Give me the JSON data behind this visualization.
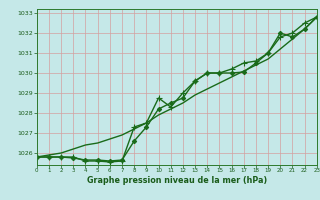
{
  "series": [
    {
      "name": "line_smooth",
      "x": [
        0,
        1,
        2,
        3,
        4,
        5,
        6,
        7,
        8,
        9,
        10,
        11,
        12,
        13,
        14,
        15,
        16,
        17,
        18,
        19,
        20,
        21,
        22,
        23
      ],
      "y": [
        1025.8,
        1025.9,
        1026.0,
        1026.2,
        1026.4,
        1026.5,
        1026.7,
        1026.9,
        1027.2,
        1027.5,
        1027.9,
        1028.2,
        1028.5,
        1028.9,
        1029.2,
        1029.5,
        1029.8,
        1030.1,
        1030.4,
        1030.7,
        1031.2,
        1031.7,
        1032.2,
        1032.8
      ],
      "marker": null,
      "color": "#1a6b1a",
      "linewidth": 1.0
    },
    {
      "name": "line_diamond",
      "x": [
        0,
        1,
        2,
        3,
        4,
        5,
        6,
        7,
        8,
        9,
        10,
        11,
        12,
        13,
        14,
        15,
        16,
        17,
        18,
        19,
        20,
        21,
        22,
        23
      ],
      "y": [
        1025.8,
        1025.8,
        1025.8,
        1025.75,
        1025.65,
        1025.65,
        1025.6,
        1025.65,
        1026.6,
        1027.3,
        1028.2,
        1028.5,
        1028.75,
        1029.6,
        1030.0,
        1030.0,
        1030.0,
        1030.05,
        1030.5,
        1031.0,
        1032.0,
        1031.8,
        1032.2,
        1032.8
      ],
      "marker": "D",
      "color": "#1a6b1a",
      "linewidth": 1.0,
      "markersize": 2.2
    },
    {
      "name": "line_cross",
      "x": [
        0,
        1,
        2,
        3,
        4,
        5,
        6,
        7,
        8,
        9,
        10,
        11,
        12,
        13,
        14,
        15,
        16,
        17,
        18,
        19,
        20,
        21,
        22,
        23
      ],
      "y": [
        1025.8,
        1025.8,
        1025.8,
        1025.8,
        1025.6,
        1025.6,
        1025.55,
        1025.6,
        1027.3,
        1027.5,
        1028.75,
        1028.3,
        1029.0,
        1029.6,
        1030.0,
        1030.0,
        1030.2,
        1030.5,
        1030.6,
        1031.0,
        1031.8,
        1032.0,
        1032.5,
        1032.8
      ],
      "marker": "+",
      "color": "#1a6b1a",
      "linewidth": 1.0,
      "markersize": 4.0
    }
  ],
  "xlim": [
    0,
    23
  ],
  "ylim": [
    1025.4,
    1033.2
  ],
  "yticks": [
    1026,
    1027,
    1028,
    1029,
    1030,
    1031,
    1032,
    1033
  ],
  "xticks": [
    0,
    1,
    2,
    3,
    4,
    5,
    6,
    7,
    8,
    9,
    10,
    11,
    12,
    13,
    14,
    15,
    16,
    17,
    18,
    19,
    20,
    21,
    22,
    23
  ],
  "xlabel": "Graphe pression niveau de la mer (hPa)",
  "bg_color": "#c5e8e8",
  "grid_color": "#d4a0a0",
  "spine_color": "#2d7a2d",
  "tick_color": "#1a5c1a",
  "label_color": "#1a5c1a",
  "figsize": [
    3.2,
    2.0
  ],
  "dpi": 100
}
